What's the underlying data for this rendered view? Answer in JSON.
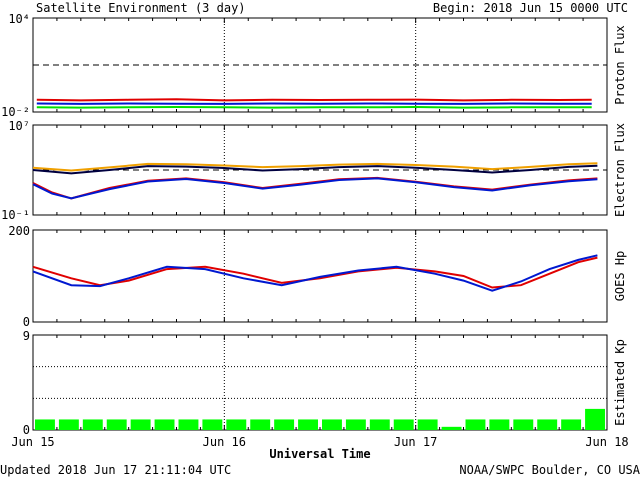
{
  "header": {
    "title": "Satellite Environment (3 day)",
    "begin": "Begin:  2018 Jun 15 0000 UTC"
  },
  "footer": {
    "updated": "Updated 2018 Jun 17 21:11:04 UTC",
    "credit": "NOAA/SWPC Boulder, CO USA"
  },
  "x_axis": {
    "label": "Universal Time",
    "ticks": [
      "Jun 15",
      "Jun 16",
      "Jun 17",
      "Jun 18"
    ],
    "range_days": [
      0,
      3
    ]
  },
  "colors": {
    "red": "#e00000",
    "blue": "#0018d0",
    "green": "#00e000",
    "orange": "#f0a000",
    "navy": "#000040"
  },
  "chart_data": [
    {
      "type": "line",
      "ylabel": "Proton Flux",
      "yscale": "log",
      "ylim": [
        0.01,
        10000
      ],
      "tick_labels": [
        "10⁴",
        "10⁻²"
      ],
      "threshold": 10,
      "series": [
        {
          "color": "red",
          "x": [
            0.02,
            0.25,
            0.5,
            0.75,
            1.0,
            1.25,
            1.5,
            1.75,
            2.0,
            2.25,
            2.5,
            2.75,
            2.92
          ],
          "y": [
            0.06,
            0.055,
            0.06,
            0.065,
            0.055,
            0.06,
            0.058,
            0.06,
            0.062,
            0.055,
            0.06,
            0.058,
            0.06
          ]
        },
        {
          "color": "blue",
          "x": [
            0.02,
            0.25,
            0.5,
            0.75,
            1.0,
            1.25,
            1.5,
            1.75,
            2.0,
            2.25,
            2.5,
            2.75,
            2.92
          ],
          "y": [
            0.035,
            0.033,
            0.035,
            0.034,
            0.033,
            0.035,
            0.034,
            0.035,
            0.034,
            0.033,
            0.035,
            0.034,
            0.034
          ]
        },
        {
          "color": "green",
          "x": [
            0.02,
            0.25,
            0.5,
            0.75,
            1.0,
            1.25,
            1.5,
            1.75,
            2.0,
            2.25,
            2.5,
            2.75,
            2.92
          ],
          "y": [
            0.02,
            0.019,
            0.02,
            0.021,
            0.02,
            0.019,
            0.02,
            0.02,
            0.021,
            0.019,
            0.02,
            0.02,
            0.02
          ]
        }
      ]
    },
    {
      "type": "line",
      "ylabel": "Electron Flux",
      "yscale": "log",
      "ylim": [
        0.1,
        10000000
      ],
      "tick_labels": [
        "10⁷",
        "10⁻¹"
      ],
      "threshold": 1000,
      "series": [
        {
          "color": "orange",
          "x": [
            0,
            0.2,
            0.4,
            0.6,
            0.8,
            1.0,
            1.2,
            1.4,
            1.6,
            1.8,
            2.0,
            2.2,
            2.4,
            2.6,
            2.8,
            2.95
          ],
          "y": [
            1600,
            900,
            1700,
            3500,
            3200,
            2500,
            1800,
            2200,
            3000,
            3500,
            2800,
            2000,
            1200,
            1900,
            3200,
            4000
          ]
        },
        {
          "color": "navy",
          "x": [
            0,
            0.2,
            0.4,
            0.6,
            0.8,
            1.0,
            1.2,
            1.4,
            1.6,
            1.8,
            2.0,
            2.2,
            2.4,
            2.6,
            2.8,
            2.95
          ],
          "y": [
            1000,
            500,
            1000,
            2200,
            2000,
            1500,
            900,
            1200,
            1800,
            2200,
            1600,
            1000,
            600,
            1000,
            1900,
            2400
          ]
        },
        {
          "color": "red",
          "x": [
            0,
            0.1,
            0.2,
            0.4,
            0.6,
            0.8,
            1.0,
            1.2,
            1.4,
            1.6,
            1.8,
            2.0,
            2.2,
            2.4,
            2.6,
            2.8,
            2.95
          ],
          "y": [
            70,
            10,
            3,
            25,
            110,
            180,
            80,
            25,
            60,
            150,
            200,
            90,
            35,
            18,
            50,
            120,
            180
          ]
        },
        {
          "color": "blue",
          "x": [
            0,
            0.1,
            0.2,
            0.4,
            0.6,
            0.8,
            1.0,
            1.2,
            1.4,
            1.6,
            1.8,
            2.0,
            2.2,
            2.4,
            2.6,
            2.8,
            2.95
          ],
          "y": [
            55,
            8,
            3,
            20,
            95,
            160,
            70,
            22,
            50,
            130,
            180,
            80,
            30,
            15,
            45,
            100,
            150
          ]
        }
      ]
    },
    {
      "type": "line",
      "ylabel": "GOES Hp",
      "ylim": [
        0,
        200
      ],
      "tick_labels": [
        "200",
        "0"
      ],
      "series": [
        {
          "color": "red",
          "x": [
            0,
            0.2,
            0.35,
            0.5,
            0.7,
            0.9,
            1.1,
            1.3,
            1.5,
            1.7,
            1.9,
            2.1,
            2.25,
            2.4,
            2.55,
            2.7,
            2.85,
            2.95
          ],
          "y": [
            120,
            95,
            80,
            90,
            115,
            120,
            105,
            85,
            95,
            110,
            118,
            110,
            100,
            75,
            80,
            105,
            130,
            140
          ]
        },
        {
          "color": "blue",
          "x": [
            0,
            0.2,
            0.35,
            0.5,
            0.7,
            0.9,
            1.1,
            1.3,
            1.5,
            1.7,
            1.9,
            2.1,
            2.25,
            2.4,
            2.55,
            2.7,
            2.85,
            2.95
          ],
          "y": [
            110,
            80,
            78,
            95,
            120,
            115,
            95,
            80,
            98,
            112,
            120,
            105,
            90,
            68,
            88,
            115,
            135,
            145
          ]
        }
      ]
    },
    {
      "type": "bar",
      "ylabel": "Estimated Kp",
      "ylim": [
        0,
        9
      ],
      "tick_labels": [
        "9",
        "0"
      ],
      "bar_width_days": 0.125,
      "values": [
        1,
        1,
        1,
        1,
        1,
        1,
        1,
        1,
        1,
        1,
        1,
        1,
        1,
        1,
        1,
        1,
        1,
        0.3,
        1,
        1,
        1,
        1,
        1,
        2
      ],
      "highlight_color": "#00ff00"
    }
  ]
}
